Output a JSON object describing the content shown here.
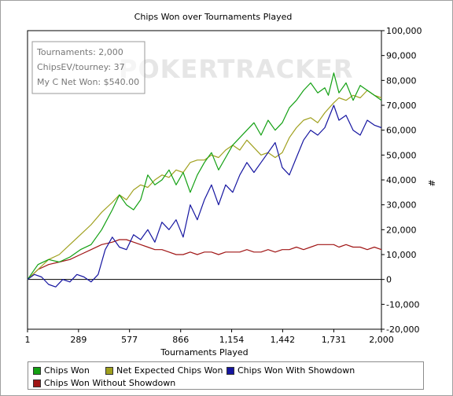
{
  "chart_data": {
    "type": "line",
    "title": "Chips Won over Tournaments Played",
    "xlabel": "Tournaments Played",
    "ylabel": "#",
    "xlim": [
      1,
      2000
    ],
    "ylim": [
      -20000,
      100000
    ],
    "x_ticks": [
      1,
      289,
      577,
      866,
      1154,
      1442,
      1731,
      2000
    ],
    "x_tick_labels": [
      "1",
      "289",
      "577",
      "866",
      "1,154",
      "1,442",
      "1,731",
      "2,000"
    ],
    "y_ticks": [
      -20000,
      -10000,
      0,
      10000,
      20000,
      30000,
      40000,
      50000,
      60000,
      70000,
      80000,
      90000,
      100000
    ],
    "y_tick_labels": [
      "-20,000",
      "-10,000",
      "0",
      "10,000",
      "20,000",
      "30,000",
      "40,000",
      "50,000",
      "60,000",
      "70,000",
      "80,000",
      "90,000",
      "100,000"
    ],
    "y_axis_position": "right",
    "grid": false,
    "legend_position": "bottom",
    "watermark": "POKERTRACKER",
    "series": [
      {
        "name": "Chips Won",
        "color": "#13a013",
        "x": [
          1,
          60,
          120,
          180,
          240,
          300,
          360,
          420,
          480,
          520,
          560,
          600,
          640,
          680,
          720,
          760,
          800,
          840,
          880,
          920,
          960,
          1000,
          1040,
          1080,
          1120,
          1160,
          1200,
          1240,
          1280,
          1320,
          1360,
          1400,
          1440,
          1480,
          1520,
          1560,
          1600,
          1640,
          1680,
          1700,
          1731,
          1760,
          1800,
          1840,
          1880,
          1920,
          1960,
          2000
        ],
        "y": [
          0,
          6000,
          8000,
          7000,
          9000,
          12000,
          14000,
          20000,
          28000,
          34000,
          30000,
          28000,
          32000,
          42000,
          38000,
          40000,
          44000,
          38000,
          43000,
          35000,
          42000,
          47000,
          51000,
          44000,
          49000,
          54000,
          57000,
          60000,
          63000,
          58000,
          64000,
          60000,
          63000,
          69000,
          72000,
          76000,
          79000,
          75000,
          77000,
          74000,
          83000,
          75000,
          79000,
          72000,
          78000,
          76000,
          74000,
          72000
        ]
      },
      {
        "name": "Net Expected Chips Won",
        "color": "#a0a01e",
        "x": [
          1,
          60,
          120,
          180,
          240,
          300,
          360,
          420,
          480,
          520,
          560,
          600,
          640,
          680,
          720,
          760,
          800,
          840,
          880,
          920,
          960,
          1000,
          1040,
          1080,
          1120,
          1160,
          1200,
          1240,
          1280,
          1320,
          1360,
          1400,
          1440,
          1480,
          1520,
          1560,
          1600,
          1640,
          1680,
          1731,
          1760,
          1800,
          1840,
          1880,
          1920,
          1960,
          2000
        ],
        "y": [
          0,
          4000,
          8000,
          10000,
          14000,
          18000,
          22000,
          27000,
          31000,
          34000,
          32000,
          36000,
          38000,
          37000,
          40000,
          42000,
          41000,
          44000,
          43000,
          47000,
          48000,
          48000,
          50000,
          49000,
          52000,
          54000,
          52000,
          56000,
          53000,
          50000,
          51000,
          49000,
          51000,
          57000,
          61000,
          64000,
          65000,
          63000,
          67000,
          71000,
          73000,
          72000,
          74000,
          73000,
          76000,
          74000,
          73000
        ]
      },
      {
        "name": "Chips Won With Showdown",
        "color": "#1515a0",
        "x": [
          1,
          40,
          80,
          120,
          160,
          200,
          240,
          280,
          320,
          360,
          400,
          440,
          480,
          520,
          560,
          600,
          640,
          680,
          720,
          760,
          800,
          840,
          880,
          920,
          960,
          1000,
          1040,
          1080,
          1120,
          1160,
          1200,
          1240,
          1280,
          1320,
          1360,
          1400,
          1440,
          1480,
          1520,
          1560,
          1600,
          1640,
          1680,
          1731,
          1760,
          1800,
          1840,
          1880,
          1920,
          1960,
          2000
        ],
        "y": [
          0,
          2000,
          1000,
          -2000,
          -3000,
          0,
          -1000,
          2000,
          1000,
          -1000,
          2000,
          12000,
          17000,
          13000,
          12000,
          18000,
          16000,
          20000,
          15000,
          23000,
          20000,
          24000,
          17000,
          30000,
          24000,
          32000,
          38000,
          30000,
          38000,
          35000,
          42000,
          47000,
          43000,
          47000,
          51000,
          55000,
          45000,
          42000,
          49000,
          56000,
          60000,
          58000,
          61000,
          70000,
          64000,
          66000,
          60000,
          58000,
          64000,
          62000,
          61000
        ]
      },
      {
        "name": "Chips Won Without Showdown",
        "color": "#a01515",
        "x": [
          1,
          60,
          120,
          180,
          240,
          300,
          360,
          420,
          480,
          520,
          560,
          600,
          640,
          680,
          720,
          760,
          800,
          840,
          880,
          920,
          960,
          1000,
          1040,
          1080,
          1120,
          1160,
          1200,
          1240,
          1280,
          1320,
          1360,
          1400,
          1440,
          1480,
          1520,
          1560,
          1600,
          1640,
          1680,
          1731,
          1760,
          1800,
          1840,
          1880,
          1920,
          1960,
          2000
        ],
        "y": [
          0,
          4000,
          6000,
          7000,
          8000,
          10000,
          12000,
          14000,
          15000,
          16000,
          16000,
          15000,
          14000,
          13000,
          12000,
          12000,
          11000,
          10000,
          10000,
          11000,
          10000,
          11000,
          11000,
          10000,
          11000,
          11000,
          11000,
          12000,
          11000,
          11000,
          12000,
          11000,
          12000,
          12000,
          13000,
          12000,
          13000,
          14000,
          14000,
          14000,
          13000,
          14000,
          13000,
          13000,
          12000,
          13000,
          12000
        ]
      }
    ]
  },
  "info_box": {
    "tournaments": "Tournaments: 2,000",
    "chips_ev": "ChipsEV/tourney: 37",
    "net_won": "My C Net Won: $540.00"
  }
}
